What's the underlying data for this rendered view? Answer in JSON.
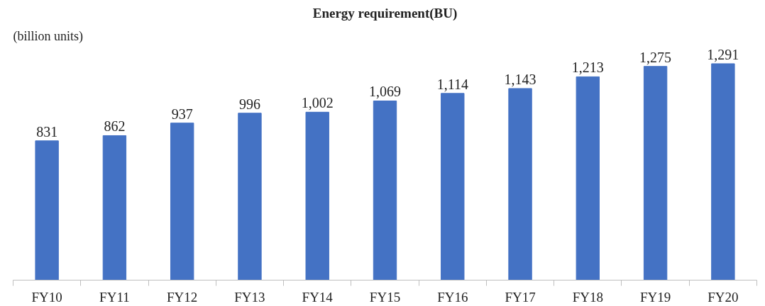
{
  "chart_data": {
    "type": "bar",
    "title": "Energy requirement(BU)",
    "ylabel": "(billion units)",
    "categories": [
      "FY10",
      "FY11",
      "FY12",
      "FY13",
      "FY14",
      "FY15",
      "FY16",
      "FY17",
      "FY18",
      "FY19",
      "FY20"
    ],
    "values": [
      831,
      862,
      937,
      996,
      1002,
      1069,
      1114,
      1143,
      1213,
      1275,
      1291
    ],
    "value_labels": [
      "831",
      "862",
      "937",
      "996",
      "1,002",
      "1,069",
      "1,114",
      "1,143",
      "1,213",
      "1,275",
      "1,291"
    ],
    "color": "#4472c4"
  }
}
